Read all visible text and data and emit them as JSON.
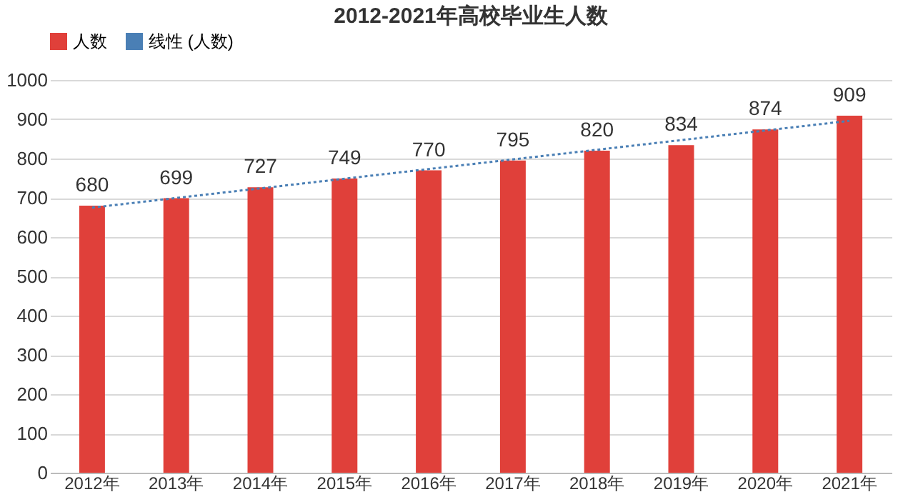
{
  "chart_data": {
    "type": "bar",
    "title": "2012-2021年高校毕业生人数",
    "categories": [
      "2012年",
      "2013年",
      "2014年",
      "2015年",
      "2016年",
      "2017年",
      "2018年",
      "2019年",
      "2020年",
      "2021年"
    ],
    "series": [
      {
        "name": "人数",
        "color": "#e0403a",
        "values": [
          680,
          699,
          727,
          749,
          770,
          795,
          820,
          834,
          874,
          909
        ],
        "value_labels": [
          "680",
          "699",
          "727",
          "749",
          "770",
          "795",
          "820",
          "834",
          "874",
          "909"
        ]
      },
      {
        "name": "线性 (人数)",
        "type": "line",
        "color": "#4a7fb5",
        "line_style": "dotted",
        "x": [
          "2012年",
          "2021年"
        ],
        "values": [
          675,
          896
        ]
      }
    ],
    "ylim": [
      0,
      1000
    ],
    "yticks": [
      0,
      100,
      200,
      300,
      400,
      500,
      600,
      700,
      800,
      900,
      1000
    ],
    "grid": "y",
    "legend": "top"
  }
}
